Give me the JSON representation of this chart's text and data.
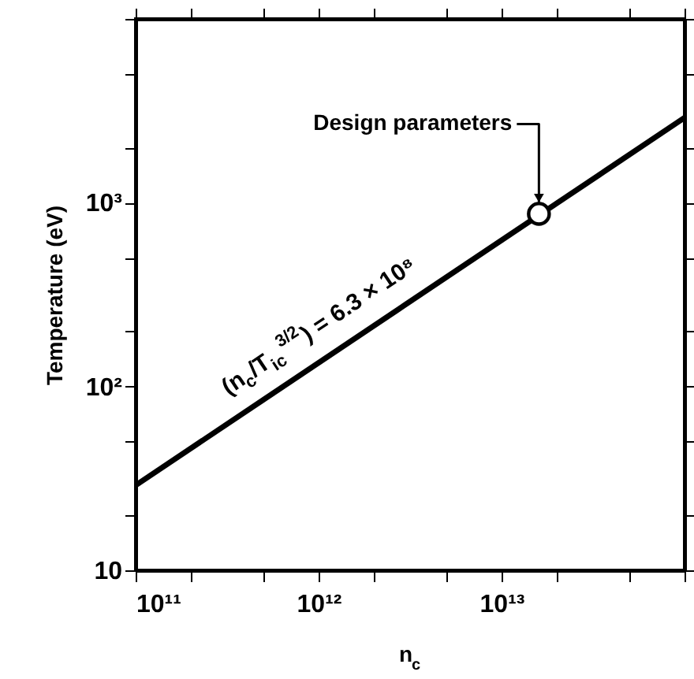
{
  "chart_data": {
    "type": "line",
    "xlabel": "n$_{c}$",
    "ylabel": "Temperature (eV)",
    "series": [
      {
        "color": "#000000",
        "x": [
          100000000000.0,
          100000000000000.0
        ],
        "values": [
          29,
          2900
        ],
        "marker": "none",
        "line_style": "solid"
      },
      {
        "type": "scatter",
        "color": "#000000",
        "x": [
          16000000000000.0
        ],
        "values": [
          870
        ],
        "marker": "circle"
      }
    ],
    "annotations": [
      {
        "text": "(n$_{c}$/T$_{ic}$$^{3/2}$) = 6.3 × 10⁸",
        "x": 1200000000000.0,
        "y": 154
      },
      {
        "text": "Design parameters",
        "x": 16000000000000.0,
        "y": 870
      }
    ],
    "log": "xy",
    "xlim": [
      100000000000.0,
      100000000000000.0
    ],
    "ylim": [
      10,
      10000
    ],
    "xticks": [
      {
        "value": 100000000000.0,
        "label": "10¹¹"
      },
      {
        "value": 200000000000.0,
        "label": null
      },
      {
        "value": 500000000000.0,
        "label": null
      },
      {
        "value": 1000000000000.0,
        "label": "10¹²"
      },
      {
        "value": 2000000000000.0,
        "label": null
      },
      {
        "value": 5000000000000.0,
        "label": null
      },
      {
        "value": 10000000000000.0,
        "label": "10¹³"
      },
      {
        "value": 20000000000000.0,
        "label": null
      },
      {
        "value": 50000000000000.0,
        "label": null
      },
      {
        "value": 100000000000000.0,
        "label": null
      }
    ],
    "yticks": [
      10,
      {
        "value": 20,
        "label": null
      },
      {
        "value": 50,
        "label": null
      },
      {
        "value": 100,
        "label": "10²"
      },
      {
        "value": 200,
        "label": null
      },
      {
        "value": 500,
        "label": null
      },
      {
        "value": 1000,
        "label": "10³"
      },
      {
        "value": 2000,
        "label": null
      },
      {
        "value": 5000,
        "label": null
      },
      {
        "value": 10000,
        "label": null
      }
    ],
    "grid": false
  }
}
